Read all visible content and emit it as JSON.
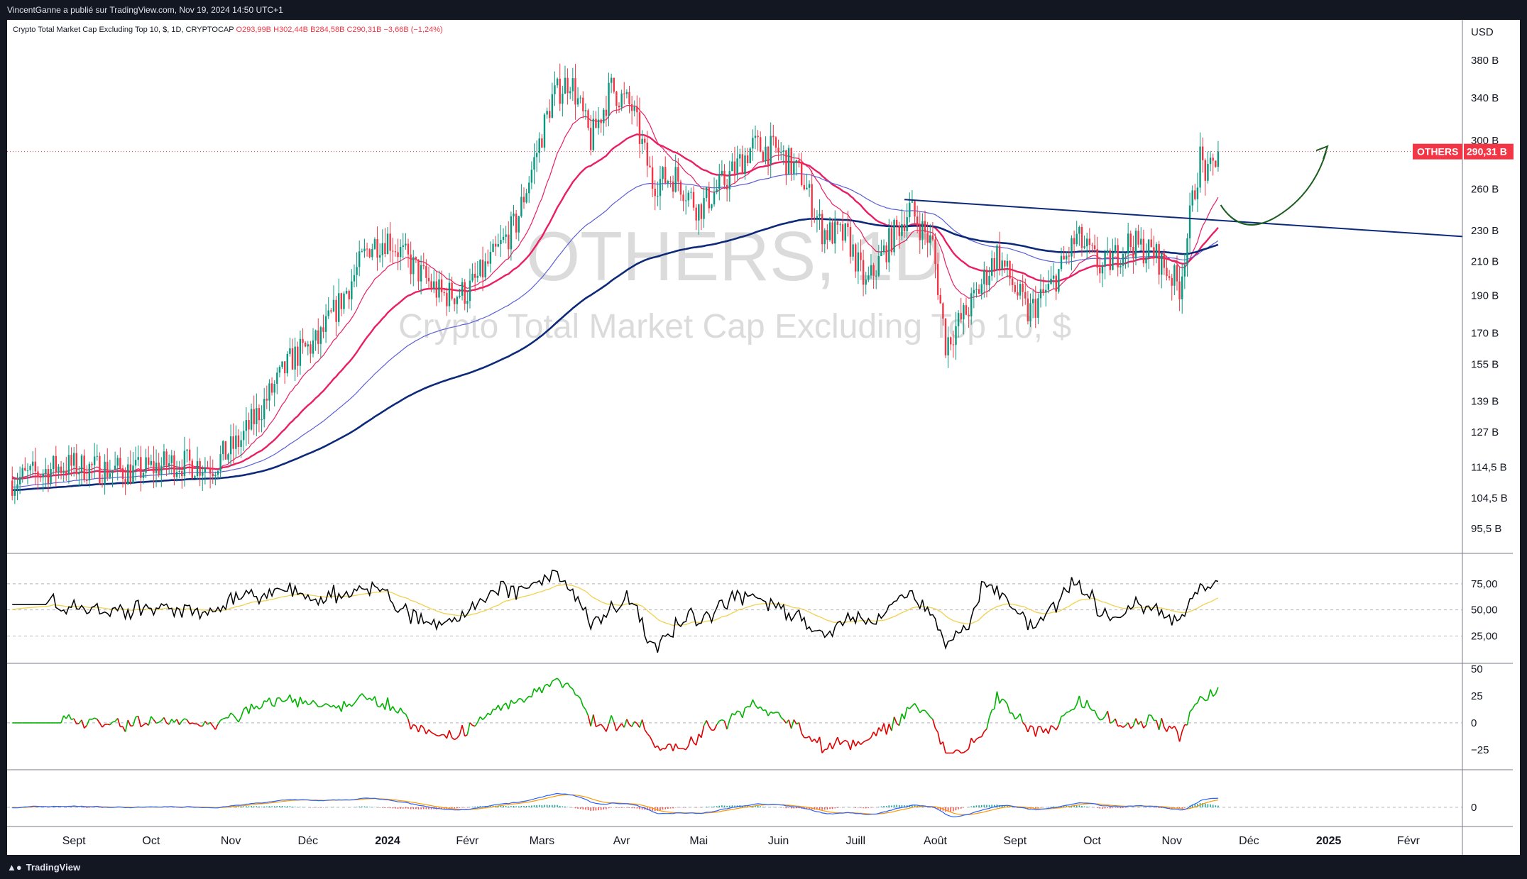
{
  "header": {
    "published": "VincentGanne a publié sur TradingView.com, Nov 19, 2024 14:50 UTC+1"
  },
  "legend": {
    "title": "Crypto Total Market Cap Excluding Top 10, $, 1D, CRYPTOCAP",
    "open": "O293,99B",
    "high": "H302,44B",
    "low": "B284,58B",
    "close": "C290,31B",
    "change": "−3,66B (−1,24%)"
  },
  "watermark": {
    "symbol": "OTHERS, 1D",
    "description": "Crypto Total Market Cap Excluding Top 10, $"
  },
  "price_badge": {
    "symbol": "OTHERS",
    "value": "290,31 B",
    "color": "#f23645"
  },
  "footer": {
    "brand": "TradingView",
    "logo_icon": "tradingview-logo-icon"
  },
  "colors": {
    "up": "#089981",
    "down": "#f23645",
    "ma_red": "#e91e63",
    "ma_blue": "#5b5fd6",
    "ma_navy": "#0d2a7a",
    "rsi": "#000000",
    "rsi_ma": "#f1d14d",
    "trendline": "#0d2a7a",
    "arrow": "#1b5e20"
  },
  "chart_data": [
    {
      "type": "candlestick",
      "title": "Crypto Total Market Cap Excluding Top 10, $",
      "scale": "log",
      "currency": "USD",
      "y_ticks": [
        "380 B",
        "340 B",
        "300 B",
        "260 B",
        "230 B",
        "210 B",
        "190 B",
        "170 B",
        "155 B",
        "139 B",
        "127 B",
        "114,5 B",
        "104,5 B",
        "95,5 B"
      ],
      "y_tick_values": [
        380,
        340,
        300,
        260,
        230,
        210,
        190,
        170,
        155,
        139,
        127,
        114.5,
        104.5,
        95.5
      ],
      "x_ticks": [
        "Sept",
        "Oct",
        "Nov",
        "Déc",
        "2024",
        "Févr",
        "Mars",
        "Avr",
        "Mai",
        "Juin",
        "Juill",
        "Août",
        "Sept",
        "Oct",
        "Nov",
        "Déc",
        "2025",
        "Févr"
      ],
      "x_tick_dates": [
        "2023-09-01",
        "2023-10-01",
        "2023-11-01",
        "2023-12-01",
        "2024-01-01",
        "2024-02-01",
        "2024-03-01",
        "2024-04-01",
        "2024-05-01",
        "2024-06-01",
        "2024-07-01",
        "2024-08-01",
        "2024-09-01",
        "2024-10-01",
        "2024-11-01",
        "2024-12-01",
        "2025-01-01",
        "2025-02-01"
      ],
      "close_path": [
        [
          "2023-08-08",
          110
        ],
        [
          "2023-08-20",
          113
        ],
        [
          "2023-08-28",
          115
        ],
        [
          "2023-09-10",
          114
        ],
        [
          "2023-09-25",
          113
        ],
        [
          "2023-10-10",
          116
        ],
        [
          "2023-10-25",
          115
        ],
        [
          "2023-11-05",
          124
        ],
        [
          "2023-11-15",
          140
        ],
        [
          "2023-11-25",
          158
        ],
        [
          "2023-12-05",
          166
        ],
        [
          "2023-12-15",
          190
        ],
        [
          "2023-12-25",
          220
        ],
        [
          "2024-01-01",
          225
        ],
        [
          "2024-01-12",
          205
        ],
        [
          "2024-01-22",
          190
        ],
        [
          "2024-02-01",
          192
        ],
        [
          "2024-02-10",
          210
        ],
        [
          "2024-02-20",
          235
        ],
        [
          "2024-02-28",
          290
        ],
        [
          "2024-03-05",
          340
        ],
        [
          "2024-03-12",
          360
        ],
        [
          "2024-03-20",
          300
        ],
        [
          "2024-03-28",
          350
        ],
        [
          "2024-04-05",
          330
        ],
        [
          "2024-04-13",
          265
        ],
        [
          "2024-04-22",
          270
        ],
        [
          "2024-05-01",
          245
        ],
        [
          "2024-05-12",
          268
        ],
        [
          "2024-05-22",
          295
        ],
        [
          "2024-06-01",
          290
        ],
        [
          "2024-06-10",
          270
        ],
        [
          "2024-06-18",
          230
        ],
        [
          "2024-06-28",
          225
        ],
        [
          "2024-07-05",
          195
        ],
        [
          "2024-07-15",
          225
        ],
        [
          "2024-07-22",
          245
        ],
        [
          "2024-07-31",
          220
        ],
        [
          "2024-08-05",
          165
        ],
        [
          "2024-08-15",
          185
        ],
        [
          "2024-08-25",
          215
        ],
        [
          "2024-09-06",
          180
        ],
        [
          "2024-09-15",
          195
        ],
        [
          "2024-09-25",
          225
        ],
        [
          "2024-10-05",
          205
        ],
        [
          "2024-10-15",
          222
        ],
        [
          "2024-10-25",
          215
        ],
        [
          "2024-11-04",
          195
        ],
        [
          "2024-11-09",
          250
        ],
        [
          "2024-11-12",
          285
        ],
        [
          "2024-11-15",
          268
        ],
        [
          "2024-11-19",
          290.31
        ]
      ],
      "last_close": 290.31,
      "indicators": [
        {
          "name": "MA red thick",
          "color": "#e91e63"
        },
        {
          "name": "MA red thin",
          "color": "#e91e63"
        },
        {
          "name": "MA blue",
          "color": "#5b5fd6"
        },
        {
          "name": "MA navy",
          "color": "#0d2a7a"
        }
      ]
    },
    {
      "type": "line",
      "panel": "RSI",
      "y_ticks": [
        "75,00",
        "50,00",
        "25,00"
      ],
      "y_tick_values": [
        75,
        50,
        25
      ]
    },
    {
      "type": "line",
      "panel": "Momentum",
      "y_ticks": [
        "50",
        "25",
        "0",
        "−25"
      ],
      "y_tick_values": [
        50,
        25,
        0,
        -25
      ]
    },
    {
      "type": "bar",
      "panel": "MACD",
      "y_ticks": [
        "0"
      ],
      "y_tick_values": [
        0
      ]
    }
  ]
}
